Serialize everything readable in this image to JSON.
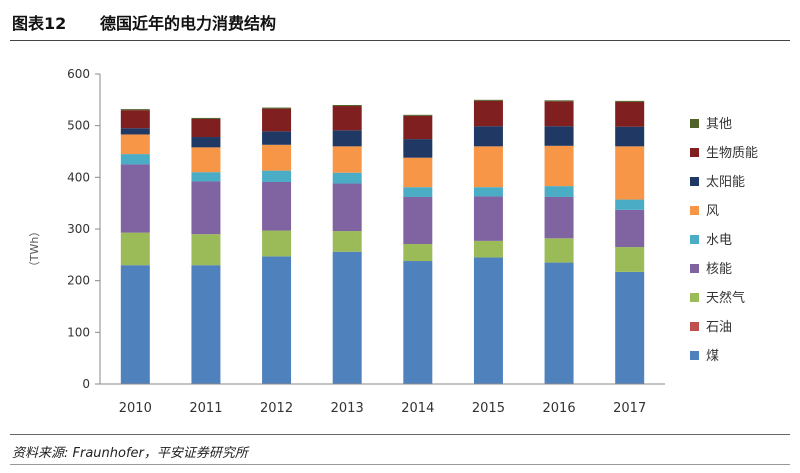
{
  "header": {
    "figure_number": "图表12",
    "title": "德国近年的电力消费结构"
  },
  "footer": {
    "source": "资料来源: Fraunhofer，平安证券研究所"
  },
  "chart_data": {
    "type": "bar",
    "stacked": true,
    "title": "德国近年的电力消费结构",
    "ylabel": "（TWh）",
    "xlabel": "",
    "ylim": [
      0,
      600
    ],
    "yticks": [
      0,
      100,
      200,
      300,
      400,
      500,
      600
    ],
    "grid": false,
    "legend_position": "right",
    "categories": [
      "2010",
      "2011",
      "2012",
      "2013",
      "2014",
      "2015",
      "2016",
      "2017"
    ],
    "series": [
      {
        "name": "煤",
        "color": "#4f81bd",
        "values": [
          230,
          230,
          247,
          256,
          238,
          245,
          235,
          217
        ]
      },
      {
        "name": "石油",
        "color": "#c0504d",
        "values": [
          0,
          0,
          0,
          0,
          0,
          0,
          0,
          0
        ]
      },
      {
        "name": "天然气",
        "color": "#9bbb59",
        "values": [
          63,
          60,
          50,
          40,
          33,
          32,
          47,
          48
        ]
      },
      {
        "name": "核能",
        "color": "#8064a2",
        "values": [
          132,
          102,
          94,
          92,
          91,
          86,
          80,
          72
        ]
      },
      {
        "name": "水电",
        "color": "#4bacc6",
        "values": [
          20,
          18,
          22,
          21,
          19,
          18,
          21,
          20
        ]
      },
      {
        "name": "风",
        "color": "#f79646",
        "values": [
          38,
          48,
          50,
          51,
          57,
          79,
          78,
          103
        ]
      },
      {
        "name": "太阳能",
        "color": "#1f3864",
        "values": [
          12,
          20,
          26,
          31,
          36,
          39,
          38,
          38
        ]
      },
      {
        "name": "生物质能",
        "color": "#7f1f1f",
        "values": [
          35,
          35,
          44,
          47,
          45,
          49,
          48,
          48
        ]
      },
      {
        "name": "其他",
        "color": "#4f6228",
        "values": [
          2,
          2,
          2,
          2,
          2,
          2,
          2,
          2
        ]
      }
    ]
  }
}
